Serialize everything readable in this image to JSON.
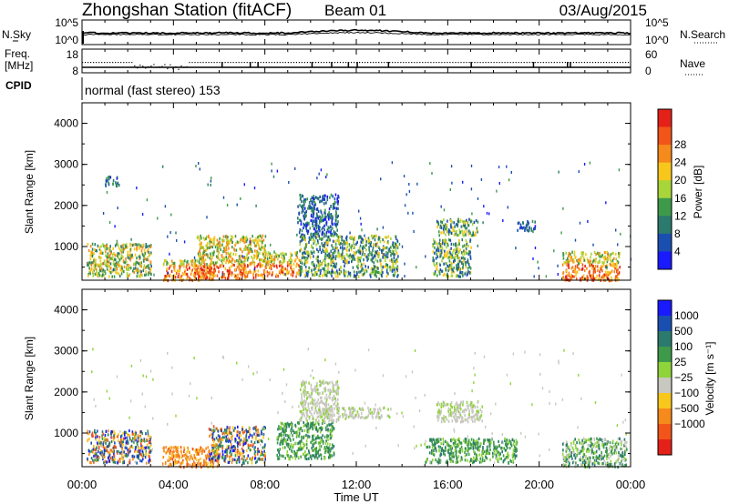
{
  "header": {
    "station": "Zhongshan Station (fitACF)",
    "beam": "Beam 01",
    "date": "03/Aug/2015"
  },
  "chart_data": [
    {
      "type": "line",
      "panel": "noise",
      "left_label": "N.Sky",
      "right_label": "N.Search",
      "left_ticks": [
        "10^5",
        "10^0"
      ],
      "right_ticks": [
        "10^5",
        "10^0"
      ],
      "xlim": [
        "00:00",
        "24:00"
      ]
    },
    {
      "type": "line",
      "panel": "frequency-nave",
      "left_label_lines": [
        "Freq.",
        "[MHz]"
      ],
      "right_label": "Nave",
      "left_ticks": [
        "18",
        "8"
      ],
      "right_ticks": [
        "60",
        "0"
      ],
      "xlim": [
        "00:00",
        "24:00"
      ]
    },
    {
      "type": "text",
      "panel": "cpid",
      "label": "CPID",
      "program": "normal (fast stereo) 153"
    },
    {
      "type": "heatmap",
      "panel": "power",
      "ylabel": "Slant Range [km]",
      "ylim": [
        180,
        4500
      ],
      "yticks": [
        "1000",
        "2000",
        "3000",
        "4000"
      ],
      "colorbar_label": "Power [dB]",
      "colorbar_ticks": [
        "4",
        "8",
        "12",
        "16",
        "20",
        "24",
        "28"
      ],
      "colors": [
        "#1a1aff",
        "#1a4fb0",
        "#2b7a6d",
        "#3e9a4a",
        "#a8d53a",
        "#f7c71b",
        "#f68a1c",
        "#f2551a",
        "#e42118"
      ],
      "xlim": [
        "00:00",
        "24:00"
      ],
      "echo_regions": [
        {
          "t": [
            0.2,
            3.0
          ],
          "r": [
            300,
            1100
          ],
          "level": "mid-high"
        },
        {
          "t": [
            1.0,
            1.6
          ],
          "r": [
            2500,
            2750
          ],
          "level": "low"
        },
        {
          "t": [
            3.5,
            5.8
          ],
          "r": [
            200,
            700
          ],
          "level": "high"
        },
        {
          "t": [
            5.0,
            8.0
          ],
          "r": [
            250,
            1300
          ],
          "level": "high"
        },
        {
          "t": [
            8.0,
            9.5
          ],
          "r": [
            300,
            900
          ],
          "level": "high"
        },
        {
          "t": [
            9.4,
            11.2
          ],
          "r": [
            1300,
            2300
          ],
          "level": "low"
        },
        {
          "t": [
            9.5,
            13.8
          ],
          "r": [
            300,
            1300
          ],
          "level": "mid"
        },
        {
          "t": [
            15.3,
            17.0
          ],
          "r": [
            300,
            1200
          ],
          "level": "mid"
        },
        {
          "t": [
            15.5,
            17.3
          ],
          "r": [
            1300,
            1700
          ],
          "level": "mid"
        },
        {
          "t": [
            19.0,
            19.8
          ],
          "r": [
            1400,
            1650
          ],
          "level": "low"
        },
        {
          "t": [
            21.0,
            23.5
          ],
          "r": [
            200,
            900
          ],
          "level": "high"
        }
      ]
    },
    {
      "type": "heatmap",
      "panel": "velocity",
      "ylabel": "Slant Range [km]",
      "ylim": [
        180,
        4500
      ],
      "yticks": [
        "1000",
        "2000",
        "3000",
        "4000"
      ],
      "xlabel": "Time UT",
      "xticks": [
        "00:00",
        "04:00",
        "08:00",
        "12:00",
        "16:00",
        "20:00",
        "00:00"
      ],
      "colorbar_label": "Velocity [m s⁻¹]",
      "colorbar_ticks": [
        "1000",
        "500",
        "100",
        "25",
        "−25",
        "−100",
        "−500",
        "−1000"
      ],
      "colors": [
        "#1a1aff",
        "#1a4fb0",
        "#2b7a6d",
        "#3e9a4a",
        "#8fd43a",
        "#c8c8c0",
        "#f7c71b",
        "#f68a1c",
        "#f2551a",
        "#e42118"
      ],
      "xlim": [
        "00:00",
        "24:00"
      ],
      "echo_regions": [
        {
          "t": [
            0.2,
            3.0
          ],
          "r": [
            300,
            1100
          ],
          "value": "mixed -500..500"
        },
        {
          "t": [
            3.5,
            6.0
          ],
          "r": [
            200,
            700
          ],
          "value": "-100..-500"
        },
        {
          "t": [
            5.5,
            8.0
          ],
          "r": [
            300,
            1200
          ],
          "value": "mixed"
        },
        {
          "t": [
            8.5,
            11.0
          ],
          "r": [
            400,
            1300
          ],
          "value": "100"
        },
        {
          "t": [
            9.5,
            11.2
          ],
          "r": [
            1300,
            2300
          ],
          "value": "~0 (ground scatter)"
        },
        {
          "t": [
            10.5,
            13.5
          ],
          "r": [
            1400,
            1650
          ],
          "value": "~0"
        },
        {
          "t": [
            15.5,
            17.5
          ],
          "r": [
            1300,
            1800
          ],
          "value": "~0"
        },
        {
          "t": [
            15.0,
            19.0
          ],
          "r": [
            300,
            900
          ],
          "value": "100"
        },
        {
          "t": [
            21.0,
            23.8
          ],
          "r": [
            200,
            900
          ],
          "value": "25..100"
        }
      ]
    }
  ]
}
